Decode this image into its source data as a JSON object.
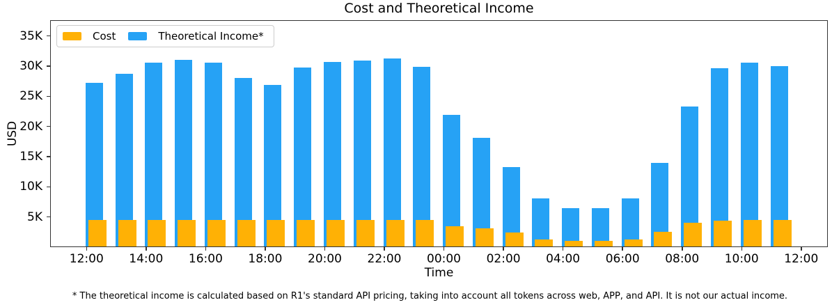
{
  "footnote": "* The theoretical income is calculated based on R1's standard API pricing, taking into account all tokens across web, APP, and API. It is not our actual income.",
  "colors": {
    "cost": "#FFB105",
    "income": "#26A2F5",
    "axis": "#333333",
    "legend_border": "#cccccc"
  },
  "chart_data": {
    "type": "bar",
    "title": "Cost and Theoretical Income",
    "xlabel": "Time",
    "ylabel": "USD",
    "categories": [
      "12:00",
      "13:00",
      "14:00",
      "15:00",
      "16:00",
      "17:00",
      "18:00",
      "19:00",
      "20:00",
      "21:00",
      "22:00",
      "23:00",
      "00:00",
      "01:00",
      "02:00",
      "03:00",
      "04:00",
      "05:00",
      "06:00",
      "07:00",
      "08:00",
      "09:00",
      "10:00",
      "11:00"
    ],
    "series": [
      {
        "name": "Cost",
        "color": "#FFB105",
        "values": [
          4400,
          4400,
          4400,
          4400,
          4400,
          4400,
          4400,
          4400,
          4400,
          4400,
          4400,
          4400,
          3400,
          3000,
          2350,
          1200,
          900,
          950,
          1200,
          2450,
          3900,
          4300,
          4400,
          4400
        ]
      },
      {
        "name": "Theoretical Income*",
        "color": "#26A2F5",
        "values": [
          27100,
          28600,
          30400,
          30900,
          30400,
          27900,
          26800,
          29600,
          30600,
          30800,
          31100,
          29800,
          21800,
          18000,
          13200,
          8000,
          6400,
          6400,
          8000,
          13800,
          23200,
          29500,
          30400,
          29900
        ]
      }
    ],
    "x_tick_labels": [
      "12:00",
      "14:00",
      "16:00",
      "18:00",
      "20:00",
      "22:00",
      "00:00",
      "02:00",
      "04:00",
      "06:00",
      "08:00",
      "10:00",
      "12:00"
    ],
    "y_tick_values": [
      5000,
      10000,
      15000,
      20000,
      25000,
      30000,
      35000
    ],
    "y_tick_labels": [
      "5K",
      "10K",
      "15K",
      "20K",
      "25K",
      "30K",
      "35K"
    ],
    "ylim": [
      0,
      37600
    ],
    "grid": false,
    "legend_position": "upper-left",
    "bar_layout": "overlapping: income bars behind, cost bars in front, cost offset slightly right"
  }
}
